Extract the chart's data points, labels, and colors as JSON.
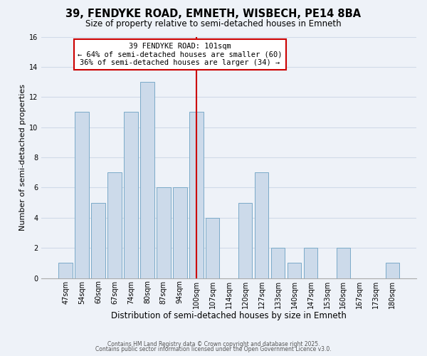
{
  "title": "39, FENDYKE ROAD, EMNETH, WISBECH, PE14 8BA",
  "subtitle": "Size of property relative to semi-detached houses in Emneth",
  "xlabel": "Distribution of semi-detached houses by size in Emneth",
  "ylabel": "Number of semi-detached properties",
  "categories": [
    "47sqm",
    "54sqm",
    "60sqm",
    "67sqm",
    "74sqm",
    "80sqm",
    "87sqm",
    "94sqm",
    "100sqm",
    "107sqm",
    "114sqm",
    "120sqm",
    "127sqm",
    "133sqm",
    "140sqm",
    "147sqm",
    "153sqm",
    "160sqm",
    "167sqm",
    "173sqm",
    "180sqm"
  ],
  "values": [
    1,
    11,
    5,
    7,
    11,
    13,
    6,
    6,
    11,
    4,
    0,
    5,
    7,
    2,
    1,
    2,
    0,
    2,
    0,
    0,
    1
  ],
  "bar_color": "#ccdaea",
  "bar_edgecolor": "#7aaac8",
  "highlight_index": 8,
  "highlight_line_color": "#cc0000",
  "annotation_line1": "39 FENDYKE ROAD: 101sqm",
  "annotation_line2": "← 64% of semi-detached houses are smaller (60)",
  "annotation_line3": "36% of semi-detached houses are larger (34) →",
  "annotation_box_edgecolor": "#cc0000",
  "ylim": [
    0,
    16
  ],
  "yticks": [
    0,
    2,
    4,
    6,
    8,
    10,
    12,
    14,
    16
  ],
  "grid_color": "#d0dae8",
  "background_color": "#eef2f8",
  "footer1": "Contains HM Land Registry data © Crown copyright and database right 2025.",
  "footer2": "Contains public sector information licensed under the Open Government Licence v3.0.",
  "title_fontsize": 10.5,
  "subtitle_fontsize": 8.5,
  "xlabel_fontsize": 8.5,
  "ylabel_fontsize": 8,
  "tick_fontsize": 7,
  "annotation_fontsize": 7.5,
  "footer_fontsize": 5.5
}
